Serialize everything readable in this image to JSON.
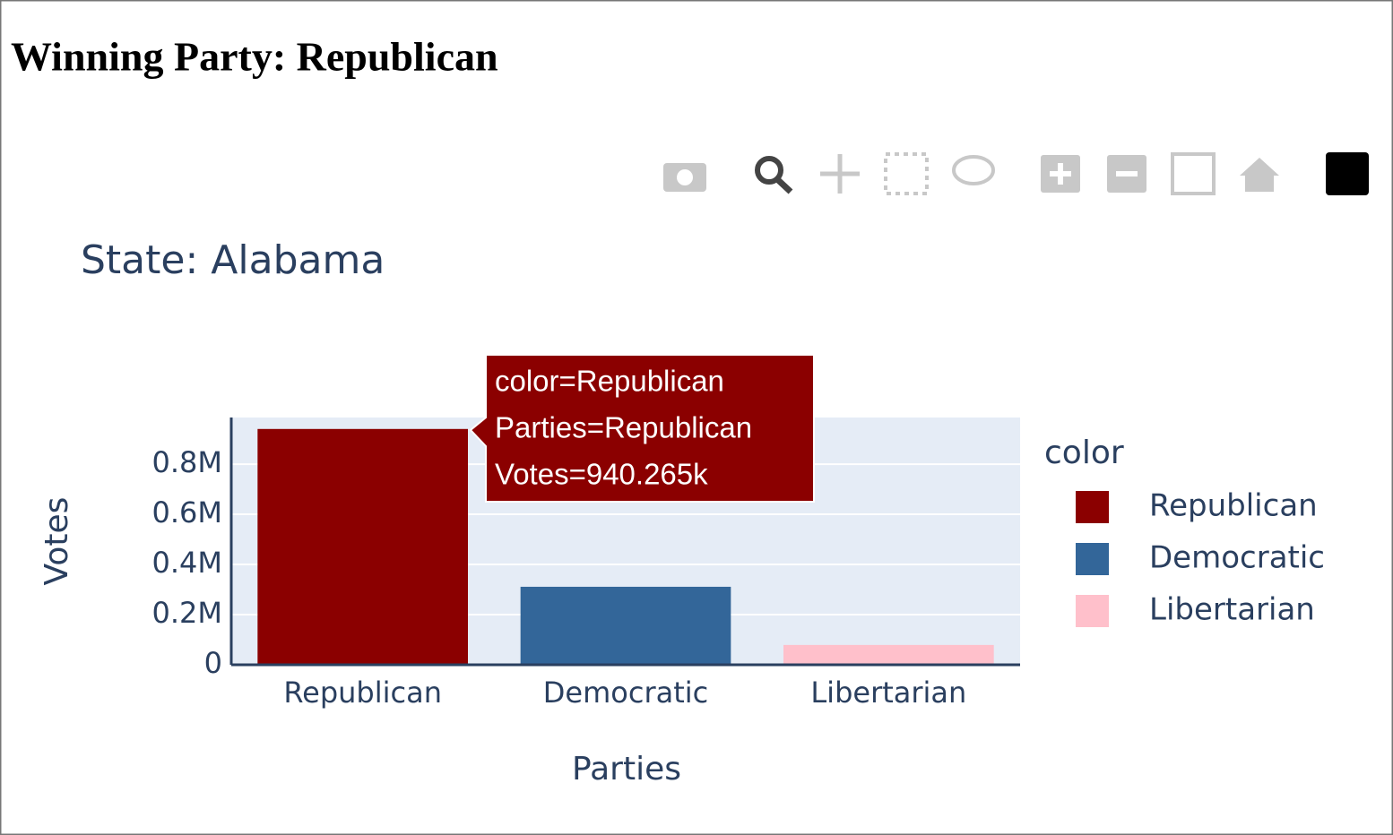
{
  "page": {
    "heading": "Winning Party: Republican"
  },
  "chart_data": {
    "type": "bar",
    "title": "State: Alabama",
    "x_label": "Parties",
    "y_label": "Votes",
    "categories": [
      "Republican",
      "Democratic",
      "Libertarian"
    ],
    "series": [
      {
        "name": "Republican",
        "color": "#8b0000",
        "values": [
          940265,
          null,
          null
        ]
      },
      {
        "name": "Democratic",
        "color": "#336699",
        "values": [
          null,
          311000,
          null
        ]
      },
      {
        "name": "Libertarian",
        "color": "#ffc0cb",
        "values": [
          null,
          null,
          79000
        ]
      }
    ],
    "ylim": [
      0,
      986000
    ],
    "yticks": [
      0,
      {
        "value": 200000,
        "label": "0.2M"
      },
      {
        "value": 400000,
        "label": "0.4M"
      },
      {
        "value": 600000,
        "label": "0.6M"
      },
      {
        "value": 800000,
        "label": "0.8M"
      }
    ],
    "grid": true,
    "legend_title": "color",
    "legend_position": "right",
    "hover_text": [
      "color=Republican",
      "Parties=Republican",
      "Votes=940.265k"
    ]
  }
}
